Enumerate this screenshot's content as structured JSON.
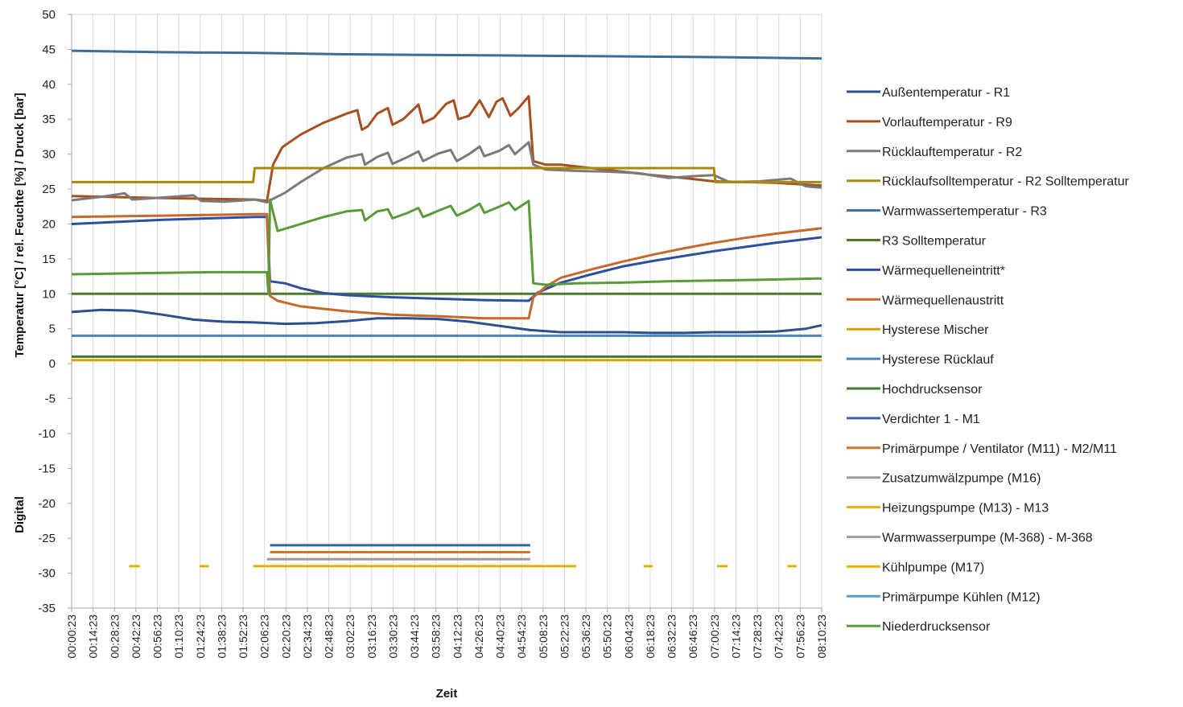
{
  "chart_data": {
    "type": "line",
    "ylabel": "Temperatur  [°C]  /  rel. Feuchte  [%]  /  Druck  [bar]",
    "ylabel_secondary": "Digital",
    "xlabel": "Zeit",
    "ylim": [
      -35,
      50
    ],
    "yticks": [
      50,
      45,
      40,
      35,
      30,
      25,
      20,
      15,
      10,
      5,
      0,
      -5,
      -10,
      -15,
      -20,
      -25,
      -30,
      -35
    ],
    "x_time_range": [
      "00:00:23",
      "08:10:23"
    ],
    "x_ticks": [
      "00:00:23",
      "00:14:23",
      "00:28:23",
      "00:42:23",
      "00:56:23",
      "01:10:23",
      "01:24:23",
      "01:38:23",
      "01:52:23",
      "02:06:23",
      "02:20:23",
      "02:34:23",
      "02:48:23",
      "03:02:23",
      "03:16:23",
      "03:30:23",
      "03:44:23",
      "03:58:23",
      "04:12:23",
      "04:26:23",
      "04:40:23",
      "04:54:23",
      "05:08:23",
      "05:22:23",
      "05:36:23",
      "05:50:23",
      "06:04:23",
      "06:18:23",
      "06:32:23",
      "06:46:23",
      "07:00:23",
      "07:14:23",
      "07:28:23",
      "07:42:23",
      "07:56:23",
      "08:10:23"
    ],
    "grid_x": true,
    "grid_y": false,
    "legend_position": "right",
    "series": [
      {
        "name": "Außentemperatur - R1",
        "color": "#2e4f8f",
        "points": [
          [
            "00:00:23",
            7.4
          ],
          [
            "00:20:00",
            7.7
          ],
          [
            "00:40:00",
            7.6
          ],
          [
            "01:00:00",
            7.0
          ],
          [
            "01:20:00",
            6.3
          ],
          [
            "01:40:00",
            6.0
          ],
          [
            "02:00:00",
            5.9
          ],
          [
            "02:20:00",
            5.7
          ],
          [
            "02:40:00",
            5.8
          ],
          [
            "03:00:00",
            6.1
          ],
          [
            "03:20:00",
            6.5
          ],
          [
            "03:40:00",
            6.5
          ],
          [
            "04:00:00",
            6.4
          ],
          [
            "04:20:00",
            6.0
          ],
          [
            "04:40:00",
            5.4
          ],
          [
            "05:00:00",
            4.8
          ],
          [
            "05:20:00",
            4.5
          ],
          [
            "05:40:00",
            4.5
          ],
          [
            "06:00:00",
            4.5
          ],
          [
            "06:20:00",
            4.4
          ],
          [
            "06:40:00",
            4.4
          ],
          [
            "07:00:00",
            4.5
          ],
          [
            "07:20:00",
            4.5
          ],
          [
            "07:40:00",
            4.6
          ],
          [
            "08:00:00",
            5.0
          ],
          [
            "08:10:23",
            5.5
          ]
        ]
      },
      {
        "name": "Vorlauftemperatur - R9",
        "color": "#a84f1f",
        "points": [
          [
            "00:00:23",
            24.0
          ],
          [
            "01:00:00",
            23.7
          ],
          [
            "02:00:00",
            23.5
          ],
          [
            "02:08:00",
            23.3
          ],
          [
            "02:12:00",
            28.5
          ],
          [
            "02:18:00",
            31.0
          ],
          [
            "02:30:00",
            32.8
          ],
          [
            "02:45:00",
            34.5
          ],
          [
            "03:00:00",
            35.8
          ],
          [
            "03:07:00",
            36.3
          ],
          [
            "03:10:00",
            33.5
          ],
          [
            "03:14:00",
            34.0
          ],
          [
            "03:20:00",
            35.8
          ],
          [
            "03:27:00",
            36.6
          ],
          [
            "03:30:00",
            34.2
          ],
          [
            "03:37:00",
            35.0
          ],
          [
            "03:47:00",
            37.1
          ],
          [
            "03:50:00",
            34.5
          ],
          [
            "03:57:00",
            35.2
          ],
          [
            "04:05:00",
            37.2
          ],
          [
            "04:10:00",
            37.7
          ],
          [
            "04:13:00",
            35.0
          ],
          [
            "04:20:00",
            35.5
          ],
          [
            "04:27:00",
            37.7
          ],
          [
            "04:33:00",
            35.3
          ],
          [
            "04:38:00",
            37.5
          ],
          [
            "04:42:00",
            38.0
          ],
          [
            "04:47:00",
            35.5
          ],
          [
            "04:52:00",
            36.5
          ],
          [
            "04:59:00",
            38.3
          ],
          [
            "05:02:00",
            29.0
          ],
          [
            "05:10:00",
            28.5
          ],
          [
            "05:20:00",
            28.5
          ],
          [
            "05:40:00",
            28.0
          ],
          [
            "06:00:00",
            27.5
          ],
          [
            "06:20:00",
            27.0
          ],
          [
            "06:40:00",
            26.6
          ],
          [
            "07:00:00",
            26.1
          ],
          [
            "07:20:00",
            26.0
          ],
          [
            "07:40:00",
            25.9
          ],
          [
            "08:10:23",
            25.5
          ]
        ]
      },
      {
        "name": "Rücklauftemperatur - R2",
        "color": "#7a7a7a",
        "points": [
          [
            "00:00:23",
            23.4
          ],
          [
            "00:20:00",
            23.9
          ],
          [
            "00:35:00",
            24.4
          ],
          [
            "00:40:00",
            23.5
          ],
          [
            "01:00:00",
            23.8
          ],
          [
            "01:20:00",
            24.1
          ],
          [
            "01:25:00",
            23.3
          ],
          [
            "01:40:00",
            23.2
          ],
          [
            "02:00:00",
            23.5
          ],
          [
            "02:08:00",
            23.1
          ],
          [
            "02:12:00",
            23.6
          ],
          [
            "02:20:00",
            24.5
          ],
          [
            "02:30:00",
            26.0
          ],
          [
            "02:45:00",
            28.0
          ],
          [
            "03:00:00",
            29.5
          ],
          [
            "03:10:00",
            30.0
          ],
          [
            "03:12:00",
            28.5
          ],
          [
            "03:20:00",
            29.6
          ],
          [
            "03:27:00",
            30.2
          ],
          [
            "03:30:00",
            28.6
          ],
          [
            "03:40:00",
            29.6
          ],
          [
            "03:47:00",
            30.4
          ],
          [
            "03:50:00",
            29.0
          ],
          [
            "04:00:00",
            30.1
          ],
          [
            "04:08:00",
            30.6
          ],
          [
            "04:12:00",
            29.0
          ],
          [
            "04:20:00",
            30.0
          ],
          [
            "04:27:00",
            31.1
          ],
          [
            "04:30:00",
            29.7
          ],
          [
            "04:40:00",
            30.5
          ],
          [
            "04:46:00",
            31.3
          ],
          [
            "04:50:00",
            30.0
          ],
          [
            "04:59:00",
            31.7
          ],
          [
            "05:02:00",
            28.5
          ],
          [
            "05:10:00",
            27.8
          ],
          [
            "05:30:00",
            27.6
          ],
          [
            "05:50:00",
            27.5
          ],
          [
            "06:10:00",
            27.3
          ],
          [
            "06:30:00",
            26.6
          ],
          [
            "06:50:00",
            26.9
          ],
          [
            "07:00:00",
            27.0
          ],
          [
            "07:10:00",
            26.0
          ],
          [
            "07:30:00",
            26.1
          ],
          [
            "07:50:00",
            26.5
          ],
          [
            "08:00:00",
            25.4
          ],
          [
            "08:10:23",
            25.2
          ]
        ]
      },
      {
        "name": "Rücklaufsolltemperatur - R2 Solltemperatur",
        "color": "#a88a0a",
        "points": [
          [
            "00:00:23",
            26.0
          ],
          [
            "01:59:00",
            26.0
          ],
          [
            "02:00:00",
            28.0
          ],
          [
            "07:00:00",
            28.0
          ],
          [
            "07:01:00",
            26.0
          ],
          [
            "08:10:23",
            26.0
          ]
        ]
      },
      {
        "name": "Warmwassertemperatur - R3",
        "color": "#3f6d9a",
        "points": [
          [
            "00:00:23",
            44.8
          ],
          [
            "01:00:00",
            44.6
          ],
          [
            "02:00:00",
            44.5
          ],
          [
            "03:00:00",
            44.3
          ],
          [
            "04:00:00",
            44.2
          ],
          [
            "05:00:00",
            44.1
          ],
          [
            "06:00:00",
            44.0
          ],
          [
            "07:00:00",
            43.9
          ],
          [
            "08:10:23",
            43.7
          ]
        ]
      },
      {
        "name": "R3 Solltemperatur",
        "color": "#4a7a2a",
        "points": [
          [
            "00:00:23",
            10.0
          ],
          [
            "08:10:23",
            10.0
          ]
        ]
      },
      {
        "name": "Wärmequelleneintritt*",
        "color": "#2e4f9f",
        "points": [
          [
            "00:00:23",
            20.0
          ],
          [
            "00:30:00",
            20.3
          ],
          [
            "01:00:00",
            20.6
          ],
          [
            "01:30:00",
            20.8
          ],
          [
            "02:00:00",
            21.0
          ],
          [
            "02:08:00",
            21.0
          ],
          [
            "02:10:00",
            11.8
          ],
          [
            "02:20:00",
            11.5
          ],
          [
            "02:30:00",
            10.8
          ],
          [
            "02:45:00",
            10.1
          ],
          [
            "03:00:00",
            9.8
          ],
          [
            "03:30:00",
            9.5
          ],
          [
            "04:00:00",
            9.3
          ],
          [
            "04:30:00",
            9.1
          ],
          [
            "04:59:00",
            9.0
          ],
          [
            "05:05:00",
            10.2
          ],
          [
            "05:20:00",
            11.6
          ],
          [
            "05:40:00",
            12.8
          ],
          [
            "06:00:00",
            13.9
          ],
          [
            "06:20:00",
            14.7
          ],
          [
            "06:40:00",
            15.4
          ],
          [
            "07:00:00",
            16.1
          ],
          [
            "07:20:00",
            16.7
          ],
          [
            "07:40:00",
            17.3
          ],
          [
            "08:10:23",
            18.1
          ]
        ]
      },
      {
        "name": "Wärmequellenaustritt",
        "color": "#c8682c",
        "points": [
          [
            "00:00:23",
            21.0
          ],
          [
            "00:30:00",
            21.1
          ],
          [
            "01:00:00",
            21.2
          ],
          [
            "01:30:00",
            21.3
          ],
          [
            "02:00:00",
            21.4
          ],
          [
            "02:08:00",
            21.4
          ],
          [
            "02:10:00",
            9.7
          ],
          [
            "02:15:00",
            9.0
          ],
          [
            "02:30:00",
            8.2
          ],
          [
            "03:00:00",
            7.5
          ],
          [
            "03:30:00",
            7.0
          ],
          [
            "04:00:00",
            6.8
          ],
          [
            "04:30:00",
            6.5
          ],
          [
            "04:59:00",
            6.5
          ],
          [
            "05:02:00",
            9.5
          ],
          [
            "05:10:00",
            11.0
          ],
          [
            "05:20:00",
            12.3
          ],
          [
            "05:40:00",
            13.5
          ],
          [
            "06:00:00",
            14.6
          ],
          [
            "06:20:00",
            15.6
          ],
          [
            "06:40:00",
            16.5
          ],
          [
            "07:00:00",
            17.3
          ],
          [
            "07:20:00",
            18.0
          ],
          [
            "07:40:00",
            18.6
          ],
          [
            "08:10:23",
            19.4
          ]
        ]
      },
      {
        "name": "Hysterese Mischer",
        "color": "#d6a400",
        "points": [
          [
            "00:00:23",
            0.5
          ],
          [
            "08:10:23",
            0.5
          ]
        ]
      },
      {
        "name": "Hysterese Rücklauf",
        "color": "#4e86b8",
        "points": [
          [
            "00:00:23",
            4.0
          ],
          [
            "08:10:23",
            4.0
          ]
        ]
      },
      {
        "name": "Hochdrucksensor",
        "color": "#3f7a2a",
        "points": [
          [
            "00:00:23",
            1.0
          ],
          [
            "08:10:23",
            1.0
          ]
        ]
      },
      {
        "name": "Verdichter 1 - M1",
        "color": "#3a62a8",
        "points": [
          [
            "02:10:00",
            -26.0
          ],
          [
            "05:00:00",
            -26.0
          ]
        ]
      },
      {
        "name": "Primärpumpe / Ventilator (M11) - M2/M11",
        "color": "#d2752f",
        "points": [
          [
            "02:10:00",
            -27.0
          ],
          [
            "05:00:00",
            -27.0
          ]
        ]
      },
      {
        "name": "Zusatzumwälzpumpe (M16)",
        "color": "#9a9a9a",
        "points": [
          [
            "02:08:00",
            -28.0
          ],
          [
            "05:00:00",
            -28.0
          ]
        ]
      },
      {
        "name": "Heizungspumpe (M13) - M13",
        "color": "#e6b000",
        "points": [
          [
            "00:38:00",
            -29.0
          ],
          [
            "00:45:00",
            -29.0
          ],
          [
            "01:24:00",
            -29.0
          ],
          [
            "01:30:00",
            -29.0
          ],
          [
            "01:59:00",
            -29.0
          ],
          [
            "05:30:00",
            -29.0
          ],
          [
            "06:14:00",
            -29.0
          ],
          [
            "06:20:00",
            -29.0
          ],
          [
            "07:02:00",
            -29.0
          ],
          [
            "07:09:00",
            -29.0
          ],
          [
            "07:48:00",
            -29.0
          ],
          [
            "07:54:00",
            -29.0
          ]
        ]
      },
      {
        "name": "Warmwasserpumpe (M-368) - M-368",
        "color": "#a0a0a0",
        "points": []
      },
      {
        "name": "Kühlpumpe (M17)",
        "color": "#f0b400",
        "points": []
      },
      {
        "name": "Primärpumpe Kühlen (M12)",
        "color": "#5b9bd5",
        "points": []
      },
      {
        "name": "Niederdrucksensor",
        "color": "#5a9a3a",
        "points": [
          [
            "00:00:23",
            12.8
          ],
          [
            "00:30:00",
            12.9
          ],
          [
            "01:00:00",
            13.0
          ],
          [
            "01:30:00",
            13.1
          ],
          [
            "02:08:00",
            13.1
          ],
          [
            "02:09:00",
            10.0
          ],
          [
            "02:10:00",
            23.5
          ],
          [
            "02:15:00",
            19.0
          ],
          [
            "02:30:00",
            20.0
          ],
          [
            "02:45:00",
            21.0
          ],
          [
            "03:00:00",
            21.8
          ],
          [
            "03:10:00",
            22.0
          ],
          [
            "03:12:00",
            20.5
          ],
          [
            "03:20:00",
            21.8
          ],
          [
            "03:27:00",
            22.1
          ],
          [
            "03:30:00",
            20.8
          ],
          [
            "03:40:00",
            21.6
          ],
          [
            "03:47:00",
            22.3
          ],
          [
            "03:50:00",
            21.0
          ],
          [
            "04:00:00",
            21.9
          ],
          [
            "04:08:00",
            22.6
          ],
          [
            "04:12:00",
            21.2
          ],
          [
            "04:20:00",
            22.0
          ],
          [
            "04:27:00",
            22.9
          ],
          [
            "04:30:00",
            21.6
          ],
          [
            "04:40:00",
            22.5
          ],
          [
            "04:46:00",
            23.1
          ],
          [
            "04:50:00",
            22.0
          ],
          [
            "04:59:00",
            23.3
          ],
          [
            "05:02:00",
            11.5
          ],
          [
            "05:10:00",
            11.3
          ],
          [
            "05:30:00",
            11.5
          ],
          [
            "06:00:00",
            11.6
          ],
          [
            "06:30:00",
            11.8
          ],
          [
            "07:00:00",
            11.9
          ],
          [
            "07:30:00",
            12.0
          ],
          [
            "08:10:23",
            12.2
          ]
        ]
      }
    ]
  }
}
